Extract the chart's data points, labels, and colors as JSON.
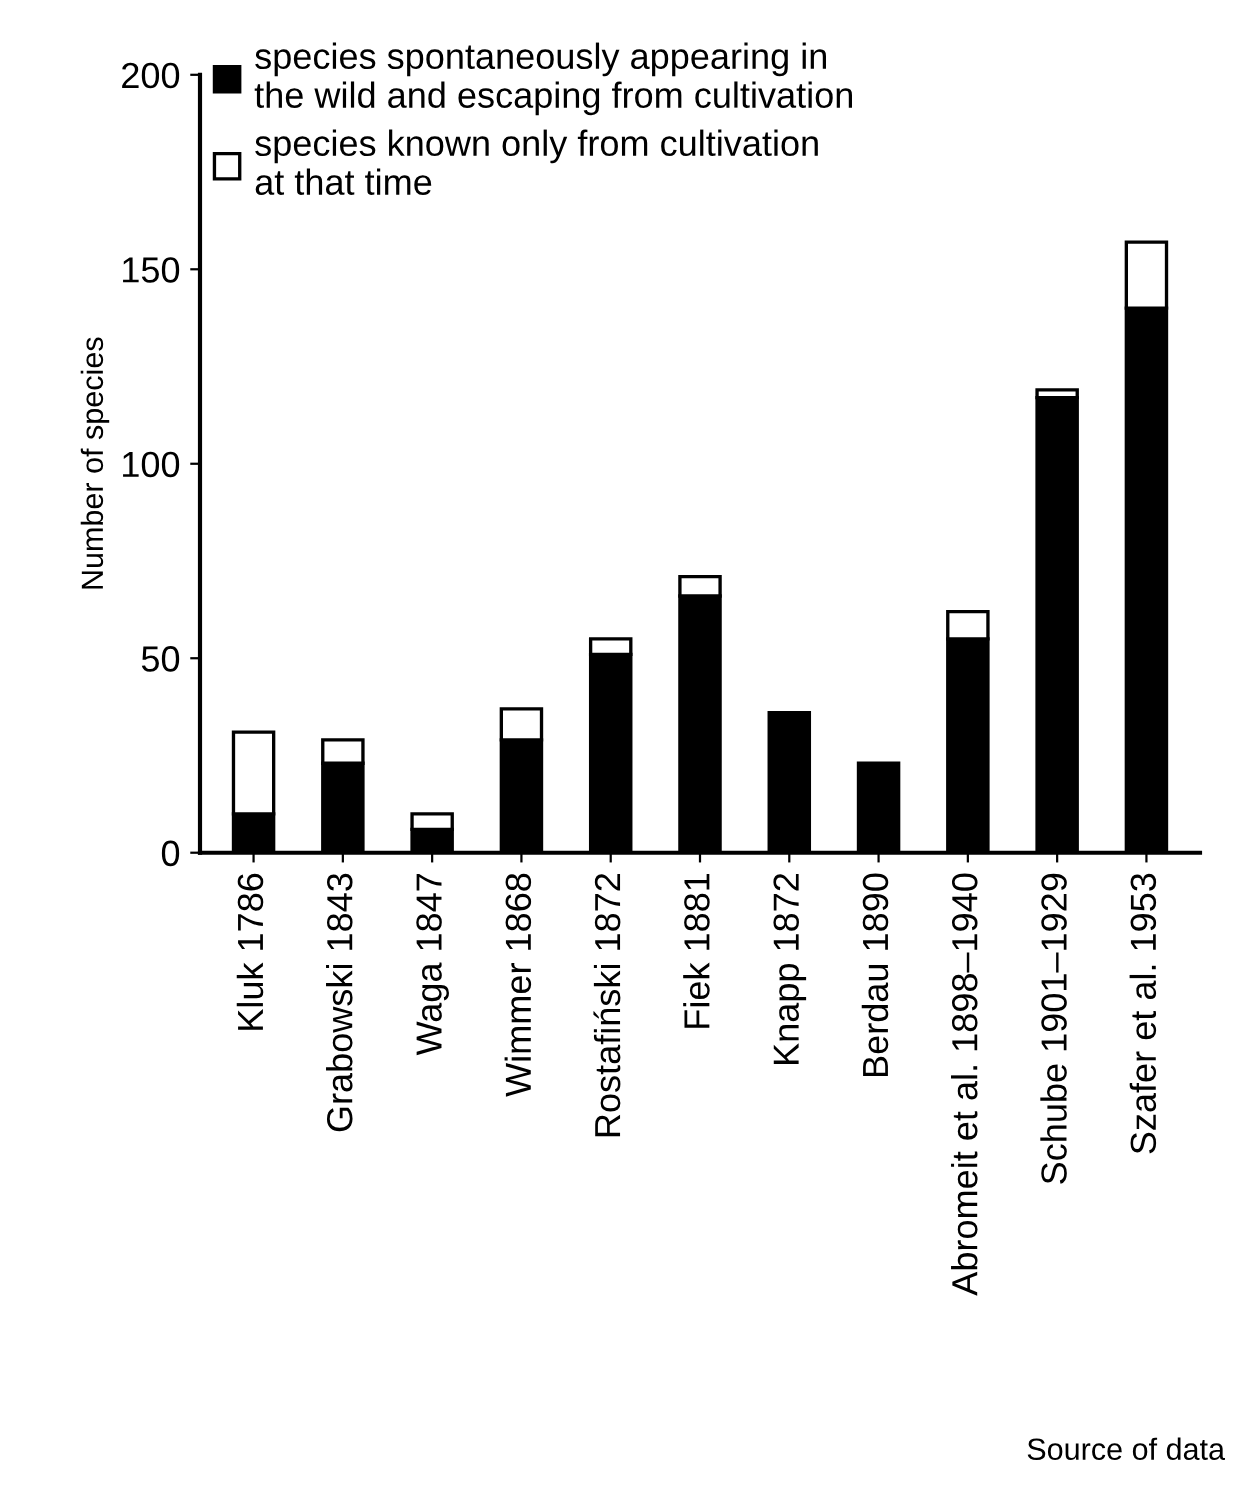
{
  "chart_data": {
    "type": "bar",
    "stacked": true,
    "ylabel": "Number of species",
    "xlabel": "Source of data",
    "categories": [
      "Kluk 1786",
      "Grabowski 1843",
      "Waga 1847",
      "Wimmer 1868",
      "Rostafiński 1872",
      "Fiek 1881",
      "Knapp 1872",
      "Berdau 1890",
      "Abromeit et al. 1898–1940",
      "Schube 1901–1929",
      "Szafer et al. 1953"
    ],
    "series": [
      {
        "name": "species spontaneously appearing in\nthe wild and escaping from cultivation",
        "color": "#000000",
        "values": [
          10,
          23,
          6,
          29,
          51,
          66,
          36,
          23,
          55,
          117,
          140
        ]
      },
      {
        "name": "species known only from cultivation\nat that time",
        "color": "#ffffff",
        "values": [
          21,
          6,
          4,
          8,
          4,
          5,
          0,
          0,
          7,
          2,
          17
        ]
      }
    ],
    "ylim": [
      0,
      200
    ],
    "yticks": [
      0,
      50,
      100,
      150,
      200
    ],
    "grid": false,
    "legend": "top left"
  }
}
